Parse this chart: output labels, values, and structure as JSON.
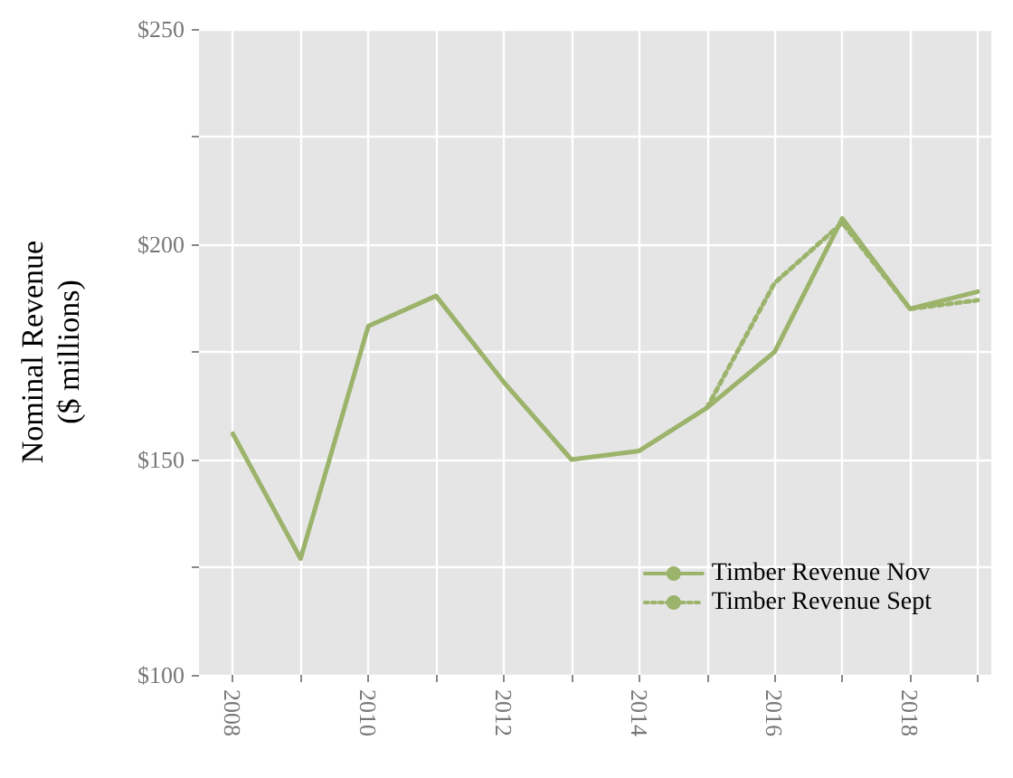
{
  "chart_data": {
    "type": "line",
    "ylabel": "Nominal Revenue\n($ millions)",
    "x": [
      2008,
      2009,
      2010,
      2011,
      2012,
      2013,
      2014,
      2015,
      2016,
      2017,
      2018,
      2019
    ],
    "series": [
      {
        "name": "Timber Revenue Nov",
        "color": "#9bb36a",
        "line_style": "solid",
        "values": [
          156,
          127,
          181,
          188,
          168,
          150,
          152,
          162,
          175,
          206,
          185,
          189
        ]
      },
      {
        "name": "Timber Revenue Sept",
        "color": "#9bb36a",
        "line_style": "dotted",
        "x": [
          2015,
          2016,
          2017,
          2018,
          2019
        ],
        "values": [
          162,
          191,
          205,
          185,
          187
        ]
      }
    ],
    "xlim": [
      2007.5,
      2019.2
    ],
    "xticks": [
      2008,
      {
        "value": 2009,
        "label": null
      },
      2010,
      {
        "value": 2011,
        "label": null
      },
      2012,
      {
        "value": 2013,
        "label": null
      },
      2014,
      {
        "value": 2015,
        "label": null
      },
      2016,
      {
        "value": 2017,
        "label": null
      },
      2018,
      {
        "value": 2019,
        "label": null
      }
    ],
    "ylim": [
      100,
      250
    ],
    "yticks": [
      {
        "value": 100,
        "label": "$100"
      },
      {
        "value": 125,
        "label": null
      },
      {
        "value": 150,
        "label": "$150"
      },
      {
        "value": 175,
        "label": null
      },
      {
        "value": 200,
        "label": "$200"
      },
      {
        "value": 225,
        "label": null
      },
      {
        "value": 250,
        "label": "$250"
      }
    ],
    "grid": true,
    "legend": "bottom right",
    "marker": "none"
  }
}
